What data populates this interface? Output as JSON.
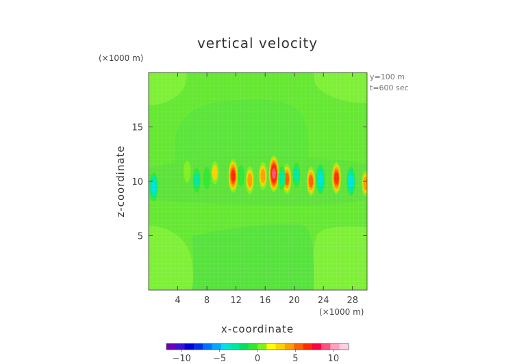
{
  "chart_data": {
    "type": "heatmap",
    "title": "vertical velocity",
    "xlabel": "x-coordinate",
    "ylabel": "z-coordinate",
    "x_unit": "(×1000 m)",
    "y_unit": "(×1000 m)",
    "xlim": [
      0,
      30
    ],
    "ylim": [
      0,
      20
    ],
    "x_ticks": [
      4,
      8,
      12,
      16,
      20,
      24,
      28
    ],
    "y_ticks": [
      5,
      10,
      15
    ],
    "annotations": [
      "y=100 m",
      "t=600 sec"
    ],
    "colorbar": {
      "range": [
        -12,
        12
      ],
      "ticks": [
        -10,
        -5,
        0,
        5,
        10
      ],
      "colors": [
        "#6a00b8",
        "#3b14d0",
        "#0000d8",
        "#0030ee",
        "#0070ff",
        "#00a8ff",
        "#00e0e8",
        "#00e8a0",
        "#00e060",
        "#30e830",
        "#80f020",
        "#ffff00",
        "#ffd000",
        "#ffa000",
        "#ff6000",
        "#ff2a00",
        "#ff0040",
        "#ff5080",
        "#ffa0c0",
        "#ffd0e0"
      ]
    },
    "background_value": 0,
    "features": [
      {
        "label": "updraft",
        "x": 5.3,
        "z": 10.9,
        "w": 1.2
      },
      {
        "label": "updraft",
        "x": 9.1,
        "z": 10.8,
        "w": 1.8
      },
      {
        "label": "updraft",
        "x": 11.6,
        "z": 10.5,
        "w": 6.5
      },
      {
        "label": "updraft",
        "x": 13.9,
        "z": 10.1,
        "w": 4.0
      },
      {
        "label": "updraft",
        "x": 15.7,
        "z": 10.5,
        "w": 4.0
      },
      {
        "label": "updraft",
        "x": 17.2,
        "z": 10.7,
        "w": 8.0
      },
      {
        "label": "updraft",
        "x": 19.0,
        "z": 10.2,
        "w": 5.0
      },
      {
        "label": "updraft",
        "x": 22.3,
        "z": 10.0,
        "w": 4.5
      },
      {
        "label": "updraft",
        "x": 25.8,
        "z": 10.3,
        "w": 6.0
      },
      {
        "label": "updraft",
        "x": 29.8,
        "z": 9.8,
        "w": 3.0
      },
      {
        "label": "downdraft",
        "x": 0.7,
        "z": 9.5,
        "w": -4.5
      },
      {
        "label": "downdraft",
        "x": 6.6,
        "z": 10.1,
        "w": -2.5
      },
      {
        "label": "downdraft",
        "x": 8.0,
        "z": 10.3,
        "w": -1.5
      },
      {
        "label": "downdraft",
        "x": 12.7,
        "z": 10.5,
        "w": -1.0
      },
      {
        "label": "downdraft",
        "x": 18.3,
        "z": 10.3,
        "w": -2.0
      },
      {
        "label": "downdraft",
        "x": 20.3,
        "z": 10.6,
        "w": -2.5
      },
      {
        "label": "downdraft",
        "x": 23.6,
        "z": 10.2,
        "w": -5.0
      },
      {
        "label": "downdraft",
        "x": 27.8,
        "z": 10.0,
        "w": -4.5
      }
    ]
  }
}
